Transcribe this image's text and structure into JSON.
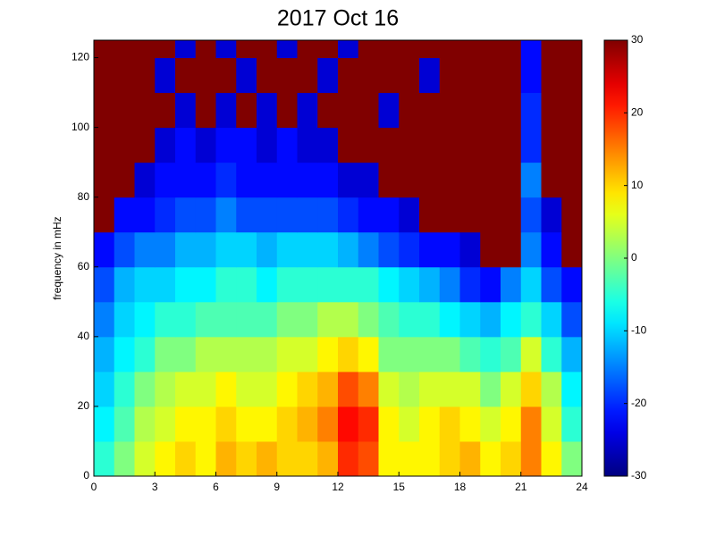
{
  "chart_data": {
    "type": "heatmap",
    "title": "2017 Oct 16",
    "y_label": "frequency in mHz",
    "xbins": [
      0,
      1,
      2,
      3,
      4,
      5,
      6,
      7,
      8,
      9,
      10,
      11,
      12,
      13,
      14,
      15,
      16,
      17,
      18,
      19,
      20,
      21,
      22,
      23,
      24
    ],
    "ybins": [
      0,
      10,
      20,
      30,
      40,
      50,
      60,
      70,
      80,
      90,
      100,
      110,
      120,
      125
    ],
    "z": [
      [
        -5,
        0,
        5,
        8,
        10,
        8,
        12,
        10,
        12,
        10,
        10,
        12,
        20,
        18,
        8,
        8,
        8,
        10,
        12,
        8,
        10,
        15,
        8,
        0
      ],
      [
        -8,
        -3,
        3,
        5,
        8,
        8,
        10,
        8,
        8,
        10,
        12,
        15,
        22,
        20,
        8,
        5,
        8,
        10,
        8,
        5,
        8,
        15,
        5,
        -5
      ],
      [
        -10,
        -5,
        0,
        3,
        5,
        5,
        8,
        5,
        5,
        8,
        10,
        12,
        18,
        15,
        5,
        3,
        5,
        5,
        5,
        0,
        5,
        10,
        3,
        -8
      ],
      [
        -12,
        -8,
        -5,
        0,
        0,
        3,
        3,
        3,
        3,
        5,
        5,
        8,
        10,
        8,
        0,
        0,
        0,
        0,
        -3,
        -5,
        -3,
        5,
        -5,
        -12
      ],
      [
        -15,
        -10,
        -8,
        -5,
        -5,
        -3,
        -3,
        -3,
        -3,
        0,
        0,
        3,
        3,
        0,
        -3,
        -5,
        -5,
        -8,
        -10,
        -12,
        -8,
        -5,
        -10,
        -18
      ],
      [
        -18,
        -12,
        -10,
        -10,
        -8,
        -8,
        -5,
        -5,
        -8,
        -5,
        -5,
        -5,
        -5,
        -5,
        -8,
        -10,
        -12,
        -15,
        -20,
        -22,
        -15,
        -10,
        -18,
        -22
      ],
      [
        -22,
        -18,
        -15,
        -15,
        -12,
        -12,
        -10,
        -10,
        -12,
        -10,
        -10,
        -10,
        -12,
        -15,
        -18,
        -20,
        -22,
        -22,
        -25,
        30,
        30,
        -15,
        -22,
        30
      ],
      [
        30,
        -22,
        -22,
        -20,
        -18,
        -18,
        -15,
        -18,
        -18,
        -18,
        -18,
        -18,
        -20,
        -22,
        -22,
        -25,
        30,
        30,
        30,
        30,
        30,
        -18,
        -25,
        30
      ],
      [
        30,
        30,
        -25,
        -22,
        -22,
        -22,
        -20,
        -22,
        -22,
        -22,
        -22,
        -22,
        -25,
        -25,
        30,
        30,
        30,
        30,
        30,
        30,
        30,
        -15,
        30,
        30
      ],
      [
        30,
        30,
        30,
        -25,
        -22,
        -25,
        -22,
        -22,
        -25,
        -22,
        -25,
        -25,
        30,
        30,
        30,
        30,
        30,
        30,
        30,
        30,
        30,
        -20,
        30,
        30
      ],
      [
        30,
        30,
        30,
        30,
        -25,
        30,
        -25,
        30,
        -25,
        30,
        -25,
        30,
        30,
        30,
        -25,
        30,
        30,
        30,
        30,
        30,
        30,
        -20,
        30,
        30
      ],
      [
        30,
        30,
        30,
        -25,
        30,
        30,
        30,
        -25,
        30,
        30,
        30,
        -25,
        30,
        30,
        30,
        30,
        -25,
        30,
        30,
        30,
        30,
        -22,
        30,
        30
      ],
      [
        30,
        30,
        30,
        30,
        -25,
        30,
        -25,
        30,
        30,
        -25,
        30,
        30,
        -25,
        30,
        30,
        30,
        30,
        30,
        30,
        30,
        30,
        -22,
        30,
        30
      ]
    ],
    "xlim": [
      0,
      24
    ],
    "xticks": [
      0,
      3,
      6,
      9,
      12,
      15,
      18,
      21,
      24
    ],
    "ylim": [
      0,
      125
    ],
    "yticks": [
      0,
      20,
      40,
      60,
      80,
      100,
      120
    ],
    "clim": [
      -30,
      30
    ],
    "cticks": [
      -30,
      -20,
      -10,
      0,
      10,
      20,
      30
    ],
    "colormap": "jet"
  }
}
